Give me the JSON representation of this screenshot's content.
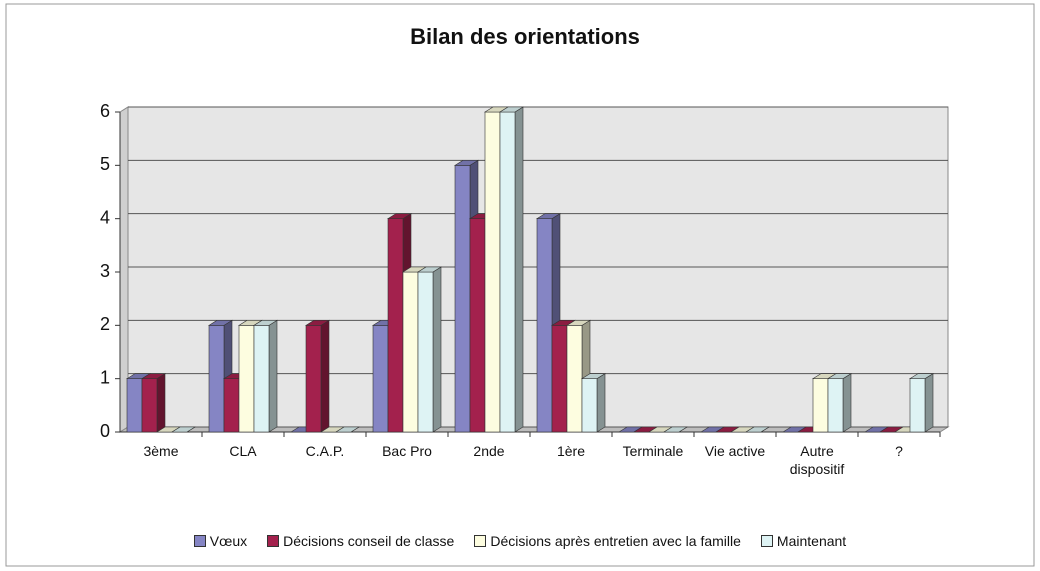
{
  "chart_data": {
    "type": "bar",
    "title": "Bilan des orientations",
    "categories": [
      "3ème",
      "CLA",
      "C.A.P.",
      "Bac Pro",
      "2nde",
      "1ère",
      "Terminale",
      "Vie active",
      "Autre dispositif",
      "?"
    ],
    "series": [
      {
        "name": "Vœux",
        "color": "#8585c4",
        "values": [
          1,
          2,
          0,
          2,
          5,
          4,
          0,
          0,
          0,
          0
        ]
      },
      {
        "name": "Décisions conseil de classe",
        "color": "#a3214d",
        "values": [
          1,
          1,
          2,
          4,
          4,
          2,
          0,
          0,
          0,
          0
        ]
      },
      {
        "name": "Décisions après entretien avec la famille",
        "color": "#fdfde0",
        "values": [
          0,
          2,
          0,
          3,
          6,
          2,
          0,
          0,
          1,
          0
        ]
      },
      {
        "name": "Maintenant",
        "color": "#def3f4",
        "values": [
          0,
          2,
          0,
          3,
          6,
          1,
          0,
          0,
          1,
          1
        ]
      }
    ],
    "ylim": [
      0,
      6
    ],
    "yticks": [
      0,
      1,
      2,
      3,
      4,
      5,
      6
    ],
    "grid": true,
    "legend": "bottom"
  }
}
